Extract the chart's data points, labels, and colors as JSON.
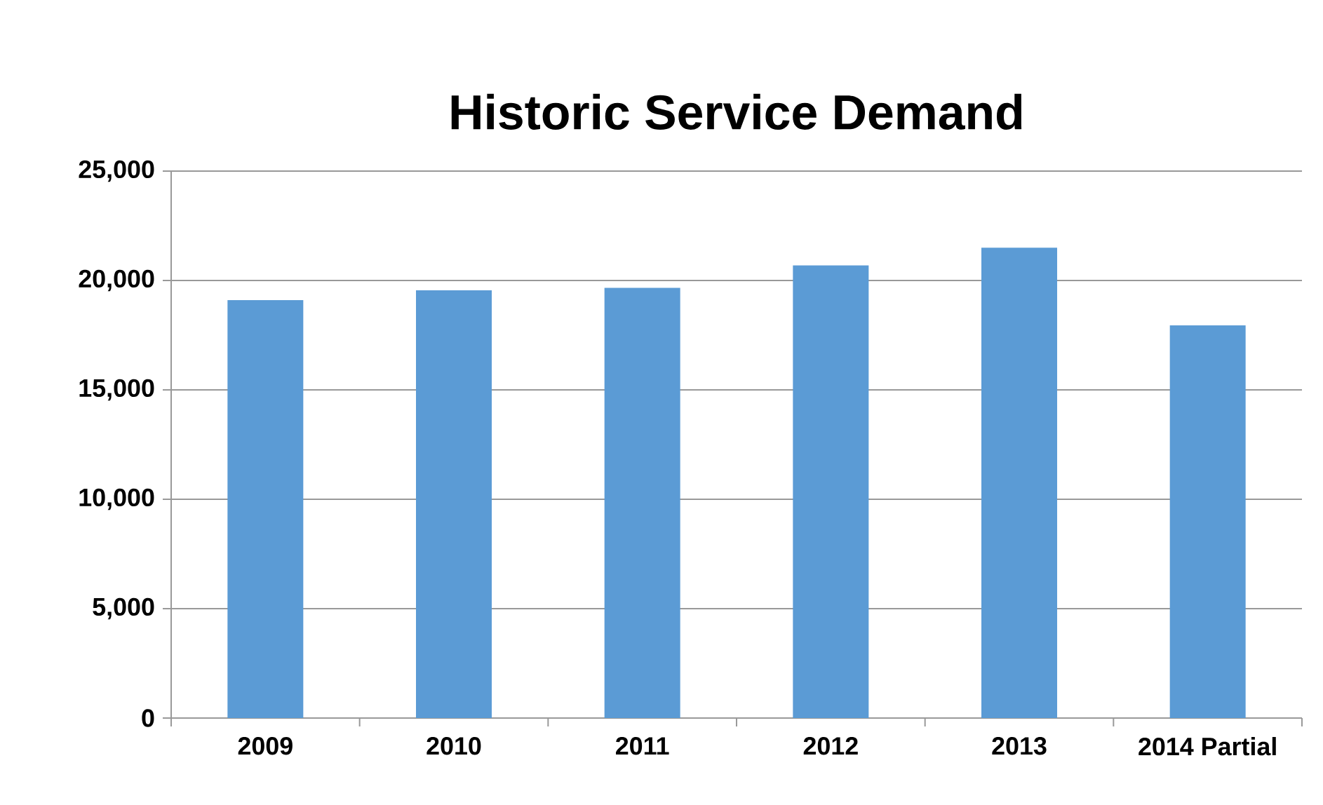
{
  "chart_data": {
    "type": "bar",
    "title": "Historic Service Demand",
    "categories": [
      "2009",
      "2010",
      "2011",
      "2012",
      "2013",
      "2014 Partial"
    ],
    "values": [
      19100,
      19550,
      19660,
      20690,
      21500,
      17950
    ],
    "color": "#5b9bd5",
    "ylim": [
      0,
      25000
    ],
    "yticks": [
      {
        "value": 0,
        "label": "0"
      },
      {
        "value": 5000,
        "label": "5,000"
      },
      {
        "value": 10000,
        "label": "10,000"
      },
      {
        "value": 15000,
        "label": "15,000"
      },
      {
        "value": 20000,
        "label": "20,000"
      },
      {
        "value": 25000,
        "label": "25,000"
      }
    ],
    "grid": "y"
  }
}
